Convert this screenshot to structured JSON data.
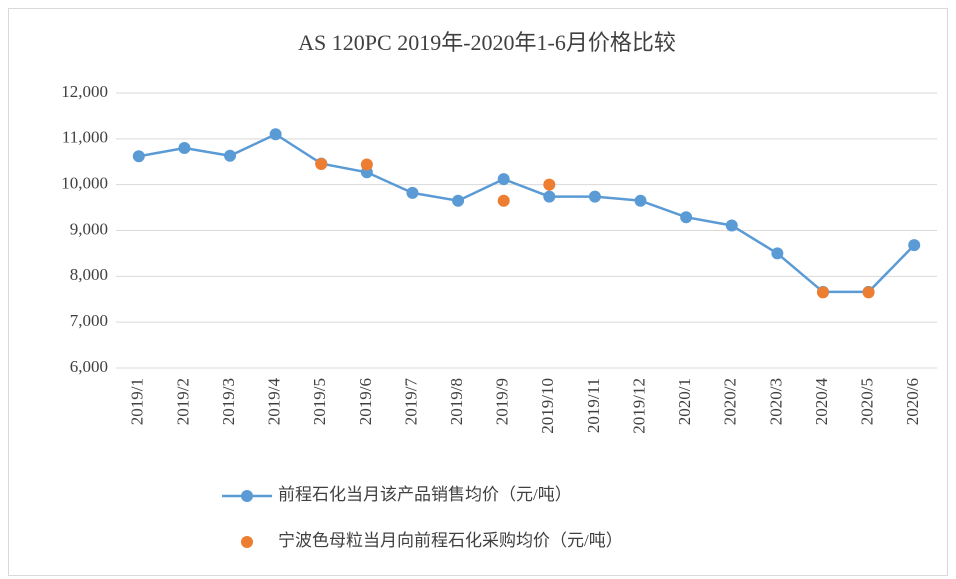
{
  "chart_data": {
    "type": "line",
    "title": "AS 120PC   2019年-2020年1-6月价格比较",
    "categories": [
      "2019/1",
      "2019/2",
      "2019/3",
      "2019/4",
      "2019/5",
      "2019/6",
      "2019/7",
      "2019/8",
      "2019/9",
      "2019/10",
      "2019/11",
      "2019/12",
      "2020/1",
      "2020/2",
      "2020/3",
      "2020/4",
      "2020/5",
      "2020/6"
    ],
    "series": [
      {
        "name": "前程石化当月该产品销售均价（元/吨）",
        "color": "#5b9bd5",
        "mode": "lines+markers",
        "values": [
          10620,
          10800,
          10630,
          11100,
          10460,
          10270,
          9820,
          9650,
          10120,
          9740,
          9740,
          9650,
          9290,
          9110,
          8500,
          7660,
          7660,
          8680
        ]
      },
      {
        "name": "宁波色母粒当月向前程石化采购均价（元/吨）",
        "color": "#ed7d31",
        "mode": "markers",
        "values": [
          null,
          null,
          null,
          null,
          10450,
          10440,
          null,
          null,
          9650,
          10000,
          null,
          null,
          null,
          null,
          null,
          7650,
          7650,
          null
        ]
      }
    ],
    "ylim": [
      6000,
      12000
    ],
    "yticks": [
      {
        "value": 6000,
        "label": "6,000"
      },
      {
        "value": 7000,
        "label": "7,000"
      },
      {
        "value": 8000,
        "label": "8,000"
      },
      {
        "value": 9000,
        "label": "9,000"
      },
      {
        "value": 10000,
        "label": "10,000"
      },
      {
        "value": 11000,
        "label": "11,000"
      },
      {
        "value": 12000,
        "label": "12,000"
      }
    ],
    "grid": true,
    "legend": "bottom"
  }
}
